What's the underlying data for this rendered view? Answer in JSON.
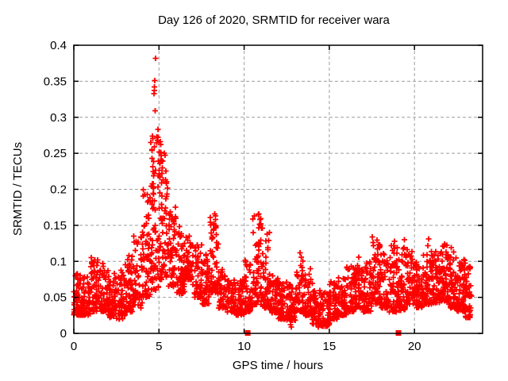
{
  "chart_data": {
    "type": "scatter",
    "title": "Day 126 of 2020, SRMTID for receiver wara",
    "xlabel": "GPS time / hours",
    "ylabel": "SRMTID / TECUs",
    "xlim": [
      0,
      24
    ],
    "ylim": [
      0,
      0.4
    ],
    "xticks": [
      0,
      5,
      10,
      15,
      20
    ],
    "yticks": [
      0,
      0.05,
      0.1,
      0.15,
      0.2,
      0.25,
      0.3,
      0.35,
      0.4
    ],
    "grid": true,
    "legend": false,
    "marker": "plus",
    "marker_color": "#ff0000",
    "grid_color": "#9e9e9e",
    "axis_color": "#000000",
    "background_color": "#ffffff",
    "series_name": "SRMTID",
    "density_bands": [
      [
        0.0,
        0.5,
        0.025,
        0.085,
        60
      ],
      [
        0.5,
        1.0,
        0.025,
        0.08,
        55
      ],
      [
        1.0,
        1.5,
        0.03,
        0.105,
        55
      ],
      [
        1.5,
        2.0,
        0.03,
        0.1,
        55
      ],
      [
        2.0,
        2.5,
        0.022,
        0.088,
        55
      ],
      [
        2.5,
        3.0,
        0.02,
        0.09,
        55
      ],
      [
        3.0,
        3.5,
        0.03,
        0.11,
        52
      ],
      [
        3.5,
        4.0,
        0.035,
        0.135,
        52
      ],
      [
        4.0,
        4.5,
        0.05,
        0.2,
        60
      ],
      [
        4.5,
        5.0,
        0.06,
        0.285,
        70
      ],
      [
        5.0,
        5.5,
        0.075,
        0.255,
        70
      ],
      [
        5.5,
        6.0,
        0.065,
        0.175,
        55
      ],
      [
        6.0,
        6.5,
        0.055,
        0.14,
        55
      ],
      [
        6.5,
        7.0,
        0.075,
        0.135,
        55
      ],
      [
        7.0,
        7.5,
        0.05,
        0.125,
        50
      ],
      [
        7.5,
        8.0,
        0.04,
        0.11,
        50
      ],
      [
        8.0,
        8.5,
        0.055,
        0.165,
        55
      ],
      [
        8.5,
        9.0,
        0.035,
        0.09,
        50
      ],
      [
        9.0,
        9.5,
        0.03,
        0.08,
        50
      ],
      [
        9.5,
        10.0,
        0.025,
        0.078,
        52
      ],
      [
        10.0,
        10.5,
        0.03,
        0.105,
        52
      ],
      [
        10.5,
        11.0,
        0.04,
        0.165,
        58
      ],
      [
        11.0,
        11.5,
        0.035,
        0.15,
        55
      ],
      [
        11.5,
        12.0,
        0.028,
        0.082,
        50
      ],
      [
        12.0,
        12.5,
        0.02,
        0.072,
        55
      ],
      [
        12.5,
        13.0,
        0.018,
        0.068,
        55
      ],
      [
        13.0,
        13.5,
        0.03,
        0.112,
        52
      ],
      [
        13.5,
        14.0,
        0.025,
        0.09,
        50
      ],
      [
        14.0,
        14.5,
        0.013,
        0.062,
        55
      ],
      [
        14.5,
        15.0,
        0.01,
        0.058,
        55
      ],
      [
        15.0,
        15.5,
        0.02,
        0.072,
        55
      ],
      [
        15.5,
        16.0,
        0.025,
        0.082,
        55
      ],
      [
        16.0,
        16.5,
        0.03,
        0.095,
        55
      ],
      [
        16.5,
        17.0,
        0.035,
        0.105,
        55
      ],
      [
        17.0,
        17.5,
        0.03,
        0.1,
        55
      ],
      [
        17.5,
        18.0,
        0.04,
        0.13,
        58
      ],
      [
        18.0,
        18.5,
        0.035,
        0.112,
        55
      ],
      [
        18.5,
        19.0,
        0.03,
        0.125,
        55
      ],
      [
        19.0,
        19.5,
        0.032,
        0.12,
        55
      ],
      [
        19.5,
        20.0,
        0.04,
        0.122,
        55
      ],
      [
        20.0,
        20.5,
        0.035,
        0.1,
        55
      ],
      [
        20.5,
        21.0,
        0.04,
        0.115,
        60
      ],
      [
        21.0,
        21.5,
        0.042,
        0.12,
        60
      ],
      [
        21.5,
        22.0,
        0.045,
        0.125,
        62
      ],
      [
        22.0,
        22.5,
        0.035,
        0.115,
        60
      ],
      [
        22.5,
        23.0,
        0.03,
        0.105,
        65
      ],
      [
        23.0,
        23.35,
        0.022,
        0.098,
        45
      ]
    ],
    "notable_points": [
      [
        4.8,
        0.382
      ],
      [
        4.76,
        0.351
      ],
      [
        4.72,
        0.342
      ],
      [
        4.74,
        0.337
      ],
      [
        4.7,
        0.333
      ],
      [
        4.78,
        0.309
      ],
      [
        4.62,
        0.274
      ],
      [
        4.95,
        0.272
      ],
      [
        5.08,
        0.266
      ],
      [
        5.1,
        0.262
      ],
      [
        4.58,
        0.255
      ],
      [
        5.02,
        0.252
      ],
      [
        5.12,
        0.247
      ],
      [
        5.15,
        0.24
      ],
      [
        5.05,
        0.236
      ],
      [
        5.2,
        0.23
      ],
      [
        5.18,
        0.222
      ],
      [
        4.66,
        0.225
      ],
      [
        5.75,
        0.162
      ],
      [
        5.85,
        0.155
      ],
      [
        6.2,
        0.148
      ],
      [
        8.28,
        0.166
      ],
      [
        8.32,
        0.158
      ],
      [
        8.22,
        0.152
      ],
      [
        8.35,
        0.148
      ],
      [
        10.86,
        0.166
      ],
      [
        10.92,
        0.158
      ],
      [
        10.97,
        0.152
      ],
      [
        11.02,
        0.146
      ],
      [
        1.02,
        0.105
      ],
      [
        1.06,
        0.099
      ],
      [
        1.7,
        0.097
      ],
      [
        3.25,
        0.108
      ],
      [
        13.28,
        0.112
      ],
      [
        13.35,
        0.106
      ],
      [
        16.72,
        0.106
      ],
      [
        17.52,
        0.134
      ],
      [
        17.56,
        0.126
      ],
      [
        18.82,
        0.128
      ],
      [
        18.78,
        0.122
      ],
      [
        19.42,
        0.13
      ],
      [
        19.38,
        0.119
      ],
      [
        20.82,
        0.131
      ],
      [
        20.78,
        0.122
      ],
      [
        21.85,
        0.113
      ],
      [
        21.95,
        0.108
      ],
      [
        22.15,
        0.119
      ],
      [
        12.72,
        0.012
      ],
      [
        12.78,
        0.009
      ],
      [
        14.35,
        0.009
      ],
      [
        14.5,
        0.012
      ],
      [
        23.2,
        0.022
      ]
    ],
    "zero_markers_x": [
      10.21,
      19.06
    ],
    "seed": 20200126
  }
}
